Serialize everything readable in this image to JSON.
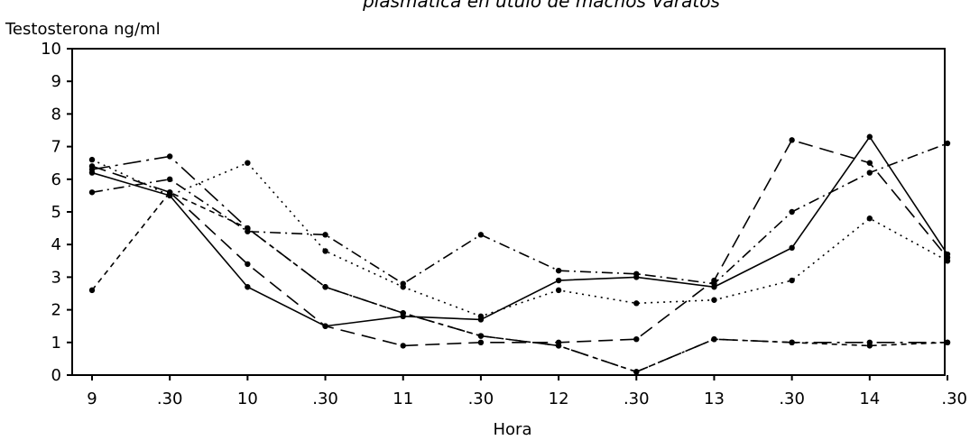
{
  "chart_data": {
    "type": "line",
    "title": "plasmática en útulo de machos Varatos",
    "ylabel": "Testosterona ng/ml",
    "xlabel": "Hora",
    "categories": [
      "9",
      ".30",
      "10",
      ".30",
      "11",
      ".30",
      "12",
      ".30",
      "13",
      ".30",
      "14",
      ".30"
    ],
    "yticks": [
      "0",
      "1",
      "2",
      "3",
      "4",
      "5",
      "6",
      "7",
      "8",
      "9",
      "10"
    ],
    "ylim": [
      0,
      10
    ],
    "grid": false,
    "legend": "none",
    "series": [
      {
        "style": "solid",
        "values": [
          6.2,
          5.5,
          2.7,
          1.5,
          1.8,
          1.7,
          2.9,
          3.0,
          2.7,
          3.9,
          7.3,
          3.7
        ]
      },
      {
        "style": "longdash",
        "values": [
          6.4,
          5.6,
          3.4,
          1.5,
          0.9,
          1.0,
          1.0,
          1.1,
          2.9,
          7.2,
          6.5,
          3.6
        ]
      },
      {
        "style": "dotted",
        "values": [
          6.6,
          5.5,
          6.5,
          3.8,
          2.7,
          1.8,
          2.6,
          2.2,
          2.3,
          2.9,
          4.8,
          3.5
        ]
      },
      {
        "style": "dashdot",
        "values": [
          5.6,
          6.0,
          4.4,
          4.3,
          2.8,
          4.3,
          3.2,
          3.1,
          2.8,
          5.0,
          6.2,
          7.1
        ]
      },
      {
        "style": "mixed",
        "values": [
          6.3,
          6.7,
          4.5,
          2.7,
          1.9,
          1.2,
          0.9,
          0.1,
          1.1,
          1.0,
          1.0,
          1.0
        ]
      },
      {
        "style": "shortdash",
        "values": [
          2.6,
          5.6,
          4.5,
          2.7,
          1.9,
          1.2,
          0.9,
          0.1,
          1.1,
          1.0,
          0.9,
          1.0
        ]
      }
    ]
  }
}
